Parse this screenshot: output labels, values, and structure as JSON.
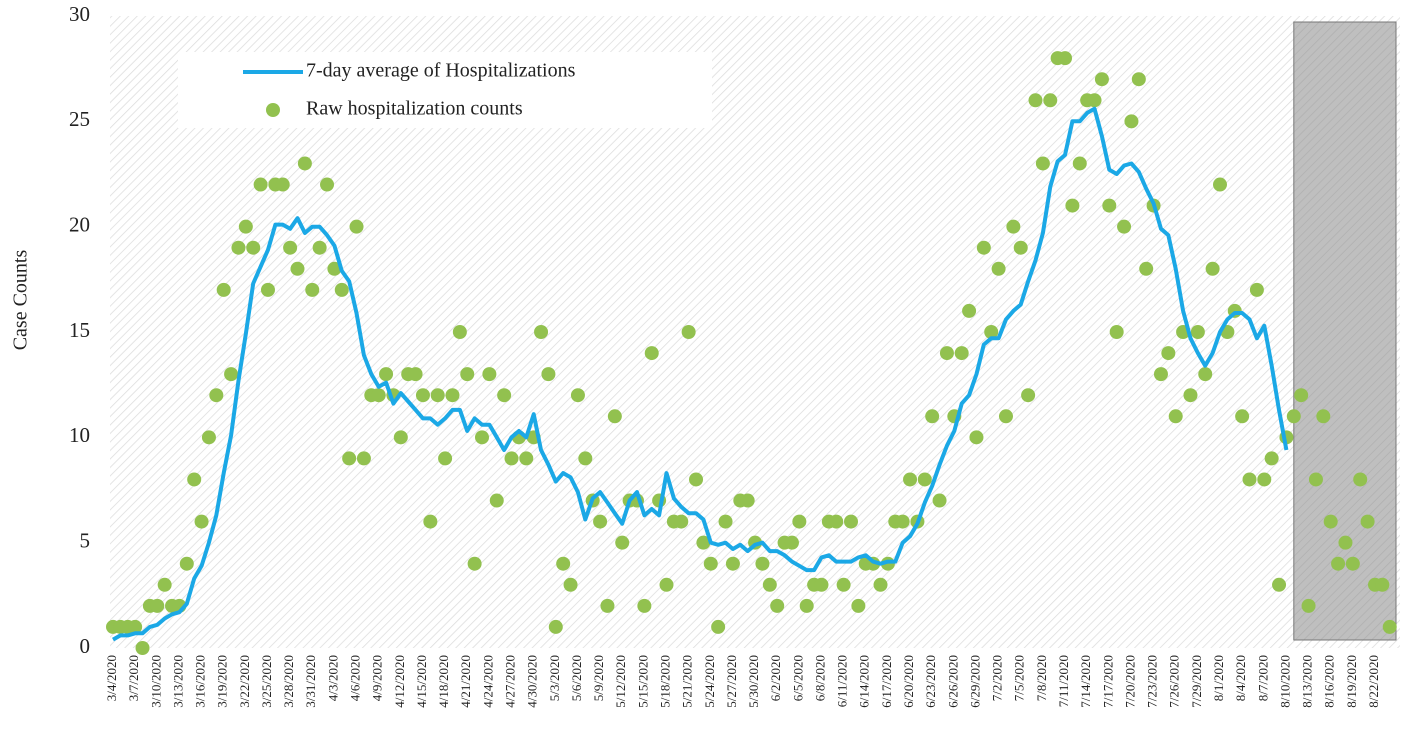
{
  "chart_data": {
    "type": "line_scatter",
    "y_label": "Case Counts",
    "legend": "upper left",
    "categories": [
      "3/4/2020",
      null,
      null,
      "3/7/2020",
      null,
      null,
      "3/10/2020",
      null,
      null,
      "3/13/2020",
      null,
      null,
      "3/16/2020",
      null,
      null,
      "3/19/2020",
      null,
      null,
      "3/22/2020",
      null,
      null,
      "3/25/2020",
      null,
      null,
      "3/28/2020",
      null,
      null,
      "3/31/2020",
      null,
      null,
      "4/3/2020",
      null,
      null,
      "4/6/2020",
      null,
      null,
      "4/9/2020",
      null,
      null,
      "4/12/2020",
      null,
      null,
      "4/15/2020",
      null,
      null,
      "4/18/2020",
      null,
      null,
      "4/21/2020",
      null,
      null,
      "4/24/2020",
      null,
      null,
      "4/27/2020",
      null,
      null,
      "4/30/2020",
      null,
      null,
      "5/3/2020",
      null,
      null,
      "5/6/2020",
      null,
      null,
      "5/9/2020",
      null,
      null,
      "5/12/2020",
      null,
      null,
      "5/15/2020",
      null,
      null,
      "5/18/2020",
      null,
      null,
      "5/21/2020",
      null,
      null,
      "5/24/2020",
      null,
      null,
      "5/27/2020",
      null,
      null,
      "5/30/2020",
      null,
      null,
      "6/2/2020",
      null,
      null,
      "6/5/2020",
      null,
      null,
      "6/8/2020",
      null,
      null,
      "6/11/2020",
      null,
      null,
      "6/14/2020",
      null,
      null,
      "6/17/2020",
      null,
      null,
      "6/20/2020",
      null,
      null,
      "6/23/2020",
      null,
      null,
      "6/26/2020",
      null,
      null,
      "6/29/2020",
      null,
      null,
      "7/2/2020",
      null,
      null,
      "7/5/2020",
      null,
      null,
      "7/8/2020",
      null,
      null,
      "7/11/2020",
      null,
      null,
      "7/14/2020",
      null,
      null,
      "7/17/2020",
      null,
      null,
      "7/20/2020",
      null,
      null,
      "7/23/2020",
      null,
      null,
      "7/26/2020",
      null,
      null,
      "7/29/2020",
      null,
      null,
      "8/1/2020",
      null,
      null,
      "8/4/2020",
      null,
      null,
      "8/7/2020",
      null,
      null,
      "8/10/2020",
      null,
      null,
      "8/13/2020",
      null,
      null,
      "8/16/2020",
      null,
      null,
      "8/19/2020",
      null,
      null,
      "8/22/2020",
      null,
      null
    ],
    "series": [
      {
        "name": "7-day average of Hospitalizations",
        "kind": "line",
        "color": "#1ba8e6",
        "values": [
          0.4,
          0.6,
          0.6,
          0.7,
          0.7,
          1.0,
          1.1,
          1.4,
          1.6,
          1.7,
          2.1,
          3.3,
          3.9,
          5.0,
          6.3,
          8.3,
          10.1,
          12.7,
          14.9,
          17.3,
          18.1,
          18.9,
          20.1,
          20.1,
          19.9,
          20.4,
          19.7,
          20.0,
          20.0,
          19.6,
          19.1,
          17.9,
          17.4,
          15.9,
          13.9,
          13.0,
          12.4,
          12.6,
          11.6,
          12.1,
          11.7,
          11.3,
          10.9,
          10.9,
          10.6,
          10.9,
          11.3,
          11.3,
          10.3,
          10.9,
          10.6,
          10.6,
          10.0,
          9.4,
          10.0,
          10.3,
          10.0,
          11.1,
          9.4,
          8.7,
          7.9,
          8.3,
          8.1,
          7.4,
          6.1,
          7.1,
          7.4,
          6.9,
          6.4,
          5.9,
          7.0,
          7.4,
          6.3,
          6.6,
          6.3,
          8.3,
          7.1,
          6.7,
          6.4,
          6.4,
          6.1,
          5.0,
          4.9,
          5.0,
          4.7,
          4.9,
          4.6,
          4.9,
          5.0,
          4.6,
          4.6,
          4.4,
          4.1,
          3.9,
          3.7,
          3.7,
          4.3,
          4.4,
          4.1,
          4.1,
          4.1,
          4.3,
          4.4,
          4.1,
          4.0,
          4.1,
          4.1,
          5.0,
          5.3,
          5.9,
          6.9,
          7.7,
          8.7,
          9.6,
          10.3,
          11.6,
          12.0,
          13.0,
          14.4,
          14.7,
          14.7,
          15.6,
          16.0,
          16.3,
          17.4,
          18.4,
          19.7,
          21.9,
          23.1,
          23.4,
          25.0,
          25.0,
          25.4,
          25.6,
          24.3,
          22.7,
          22.5,
          22.9,
          23.0,
          22.6,
          21.8,
          21.1,
          19.9,
          19.6,
          18.0,
          16.0,
          14.7,
          14.0,
          13.4,
          14.0,
          15.0,
          15.6,
          15.9,
          15.9,
          15.6,
          14.7,
          15.3,
          13.4,
          11.3,
          9.4,
          null,
          null,
          null,
          null,
          null,
          null,
          null,
          null,
          null,
          null,
          null,
          null,
          null,
          null
        ]
      },
      {
        "name": "Raw hospitalization counts",
        "kind": "scatter",
        "color": "#92c14f",
        "values": [
          1,
          1,
          1,
          1,
          0,
          2,
          2,
          3,
          2,
          2,
          4,
          8,
          6,
          10,
          12,
          17,
          13,
          19,
          20,
          19,
          22,
          17,
          22,
          22,
          19,
          18,
          23,
          17,
          19,
          22,
          18,
          17,
          9,
          20,
          9,
          12,
          12,
          13,
          12,
          10,
          13,
          13,
          12,
          6,
          12,
          9,
          12,
          15,
          13,
          4,
          10,
          13,
          7,
          12,
          9,
          10,
          9,
          10,
          15,
          13,
          1,
          4,
          3,
          12,
          9,
          7,
          6,
          2,
          11,
          5,
          7,
          7,
          2,
          14,
          7,
          3,
          6,
          6,
          15,
          8,
          5,
          4,
          1,
          6,
          4,
          7,
          7,
          5,
          4,
          3,
          2,
          5,
          5,
          6,
          2,
          3,
          3,
          6,
          6,
          3,
          6,
          2,
          4,
          4,
          3,
          4,
          6,
          6,
          8,
          6,
          8,
          11,
          7,
          14,
          11,
          14,
          16,
          10,
          19,
          15,
          18,
          11,
          20,
          19,
          12,
          26,
          23,
          26,
          28,
          28,
          21,
          23,
          26,
          26,
          27,
          21,
          15,
          20,
          25,
          27,
          18,
          21,
          13,
          14,
          11,
          15,
          12,
          15,
          13,
          18,
          22,
          15,
          16,
          11,
          8,
          17,
          8,
          9,
          3,
          10,
          11,
          12,
          2,
          8,
          11,
          6,
          4,
          5,
          4,
          8,
          6,
          3,
          3,
          1
        ]
      }
    ],
    "ylim": [
      0,
      30
    ],
    "yticks": [
      0,
      5,
      10,
      15,
      20,
      25,
      30
    ]
  }
}
